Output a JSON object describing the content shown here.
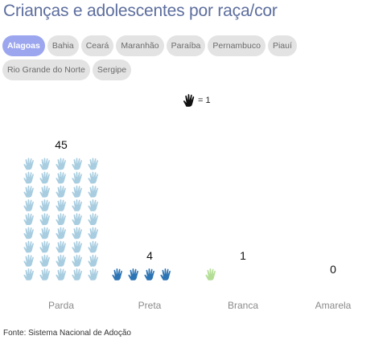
{
  "title": "Crianças e adolescentes por raça/cor",
  "tabs": [
    {
      "label": "Alagoas",
      "active": true
    },
    {
      "label": "Bahia",
      "active": false
    },
    {
      "label": "Ceará",
      "active": false
    },
    {
      "label": "Maranhão",
      "active": false
    },
    {
      "label": "Paraíba",
      "active": false
    },
    {
      "label": "Pernambuco",
      "active": false
    },
    {
      "label": "Piauí",
      "active": false
    },
    {
      "label": "Rio Grande do Norte",
      "active": false
    },
    {
      "label": "Sergipe",
      "active": false
    }
  ],
  "legend": {
    "icon": "hand-icon",
    "label": "= 1"
  },
  "chart_data": {
    "type": "bar",
    "unit_icon": "hand-icon",
    "unit_value": 1,
    "categories": [
      "Parda",
      "Preta",
      "Branca",
      "Amarela"
    ],
    "values": [
      45,
      4,
      1,
      0
    ],
    "colors": [
      "#a8cde0",
      "#2c74b4",
      "#b4de96",
      "#999999"
    ],
    "icon_columns": 5
  },
  "source": "Fonte: Sistema Nacional de Adoção"
}
